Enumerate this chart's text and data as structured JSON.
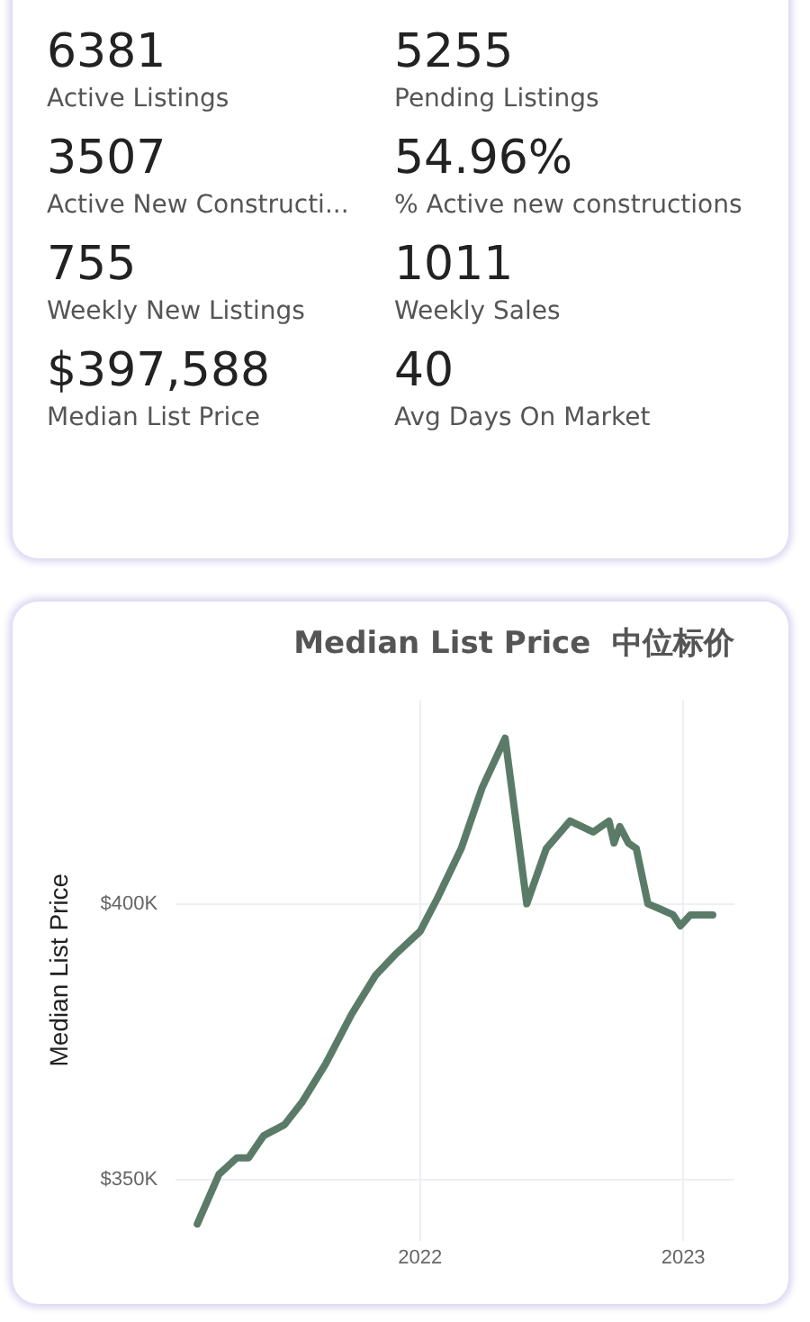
{
  "chart_data": [
    {
      "type": "other",
      "annotations": [
        "6381",
        "Active Listings",
        "5255",
        "Pending Listings",
        "3507",
        "Active New Constructi...",
        "54.96%",
        "% Active new constructions",
        "755",
        "Weekly New Listings",
        "1011",
        "Weekly Sales",
        "$397,588",
        "Median List Price",
        "40",
        "Avg Days On Market"
      ]
    },
    {
      "type": "line",
      "title": "Median List Price  中位标价",
      "ylabel": "Median List Price",
      "x": [
        "2021-02-26",
        "2021-03-28",
        "2021-04-22",
        "2021-05-08",
        "2021-05-29",
        "2021-06-27",
        "2021-07-21",
        "2021-08-23",
        "2021-09-28",
        "2021-10-31",
        "2021-11-29",
        "2022-01-01",
        "2022-01-25",
        "2022-02-27",
        "2022-03-28",
        "2022-04-29",
        "2022-05-29",
        "2022-06-25",
        "2022-07-28",
        "2022-08-29",
        "2022-09-20",
        "2022-09-27",
        "2022-10-05",
        "2022-10-17",
        "2022-10-28",
        "2022-11-13",
        "2022-12-01",
        "2022-12-18",
        "2022-12-28",
        "2023-01-11",
        "2023-01-27",
        "2023-02-11"
      ],
      "series": [
        {
          "color": "#5b7b69",
          "values": [
            342000,
            351000,
            354000,
            354000,
            358000,
            360000,
            364000,
            371000,
            380000,
            387000,
            391000,
            395000,
            401000,
            410000,
            421000,
            430000,
            400000,
            410000,
            415000,
            413000,
            415000,
            411000,
            414000,
            411000,
            410000,
            400000,
            399000,
            398000,
            396000,
            398000,
            398000,
            398000
          ]
        }
      ],
      "xlim": [
        "2021-01-27",
        "2023-03-13"
      ],
      "xticks": [
        {
          "value": "2022-01-01",
          "label": "2022"
        },
        {
          "value": "2023-01-01",
          "label": "2023"
        }
      ],
      "ylim": [
        339000,
        437000
      ],
      "yticks": [
        {
          "value": 350000,
          "label": "$350K"
        },
        {
          "value": 400000,
          "label": "$400K"
        }
      ],
      "grid": true,
      "legend": false
    }
  ]
}
